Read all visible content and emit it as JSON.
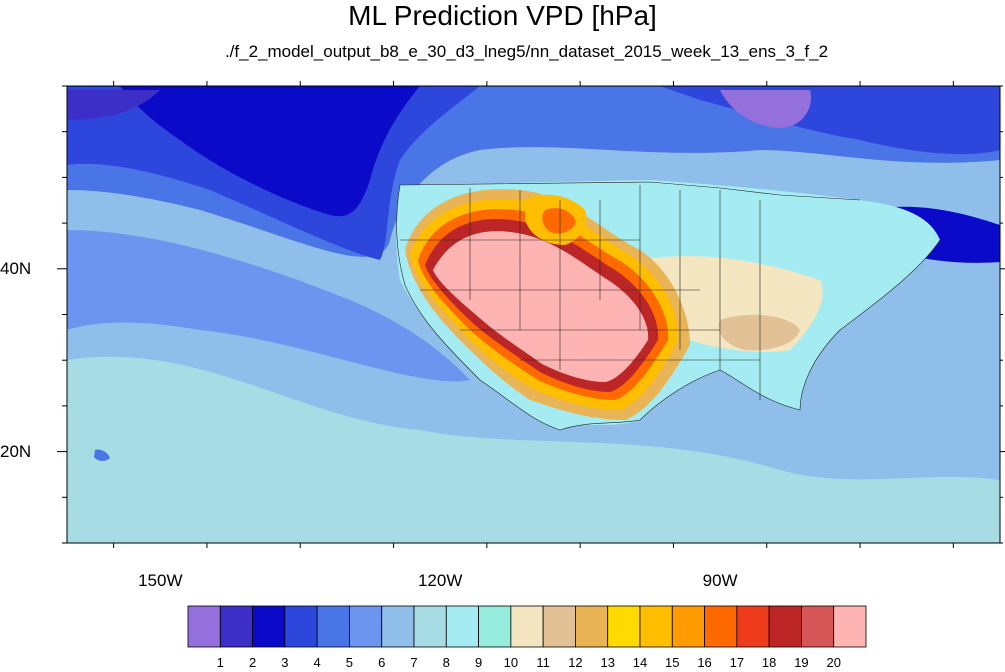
{
  "title": "ML Prediction VPD [hPa]",
  "subtitle": "./f_2_model_output_b8_e_30_d3_lneg5/nn_dataset_2015_week_13_ens_3_f_2",
  "map": {
    "lat_labels": [
      {
        "text": "40N",
        "value": 40
      },
      {
        "text": "20N",
        "value": 20
      }
    ],
    "lon_labels": [
      {
        "text": "150W",
        "value": -150
      },
      {
        "text": "120W",
        "value": -120
      },
      {
        "text": "90W",
        "value": -90
      }
    ],
    "lon_range": [
      -160,
      -60
    ],
    "lat_range": [
      10,
      60
    ]
  },
  "colorbar": {
    "labels": [
      "1",
      "2",
      "3",
      "4",
      "5",
      "6",
      "7",
      "8",
      "9",
      "10",
      "11",
      "12",
      "13",
      "14",
      "15",
      "16",
      "17",
      "18",
      "19",
      "20"
    ],
    "colors": [
      "#9370db",
      "#3c2fc8",
      "#0a0ac8",
      "#2d46dc",
      "#4a75e6",
      "#6b95ee",
      "#8fbeea",
      "#a8dce4",
      "#a5ecf2",
      "#96ecdc",
      "#f3e6c0",
      "#e2c197",
      "#e8b456",
      "#ffda00",
      "#ffbe00",
      "#ff9a00",
      "#ff6a00",
      "#ee3c1c",
      "#bd2626",
      "#d45656",
      "#ffb4b4"
    ]
  }
}
